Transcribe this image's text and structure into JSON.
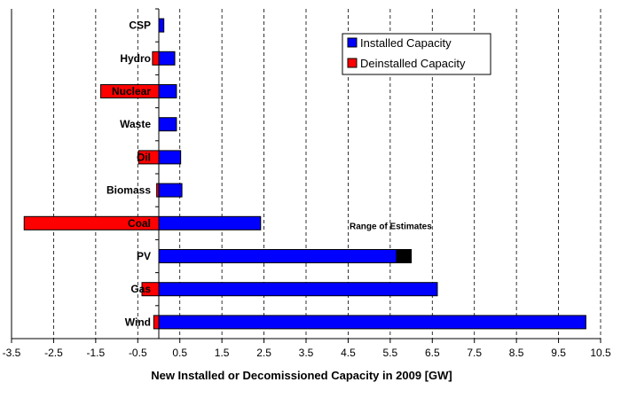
{
  "chart_data": {
    "type": "bar",
    "orientation": "horizontal",
    "categories": [
      "CSP",
      "Hydro",
      "Nuclear",
      "Waste",
      "Oil",
      "Biomass",
      "Coal",
      "PV",
      "Gas",
      "Wind"
    ],
    "series": [
      {
        "name": "Installed Capacity",
        "color": "#0000ff",
        "values": [
          0.12,
          0.38,
          0.42,
          0.42,
          0.52,
          0.55,
          2.42,
          5.65,
          6.62,
          10.15
        ]
      },
      {
        "name": "Deinstalled Capacity",
        "color": "#ff0000",
        "values": [
          0,
          -0.15,
          -1.38,
          0,
          -0.48,
          -0.05,
          -3.2,
          0,
          -0.4,
          -0.12
        ]
      }
    ],
    "range_of_estimates": {
      "category": "PV",
      "from": 5.65,
      "to": 6.0,
      "color": "#000000",
      "label": "Range of Estimates"
    },
    "xlabel": "New Installed or Decomissioned Capacity in 2009 [GW]",
    "ylabel": "",
    "xlim": [
      -3.5,
      10.5
    ],
    "xticks": [
      -3.5,
      -2.5,
      -1.5,
      -0.5,
      0.5,
      1.5,
      2.5,
      3.5,
      4.5,
      5.5,
      6.5,
      7.5,
      8.5,
      9.5,
      10.5
    ],
    "tick_labels": [
      "-3.5",
      "-2.5",
      "-1.5",
      "-0.5",
      "0.5",
      "1.5",
      "2.5",
      "3.5",
      "4.5",
      "5.5",
      "6.5",
      "7.5",
      "8.5",
      "9.5",
      "10.5"
    ],
    "grid": "vertical dashed",
    "legend": {
      "placement": "top-right",
      "items": [
        "Installed Capacity",
        "Deinstalled Capacity"
      ]
    }
  }
}
